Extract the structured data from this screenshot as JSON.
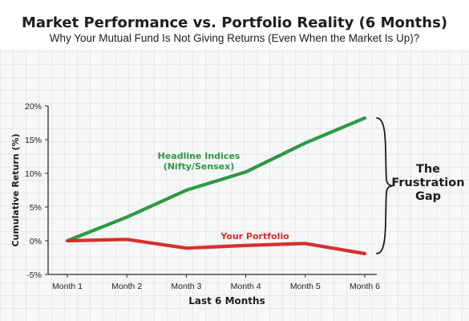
{
  "chart_data": {
    "type": "line",
    "title": "Market Performance vs. Portfolio Reality (6 Months)",
    "subtitle": "Why Your Mutual Fund Is Not Giving Returns (Even When the Market Is Up)?",
    "xlabel": "Last 6 Months",
    "ylabel": "Cumulative Return (%)",
    "categories": [
      "Month 1",
      "Month 2",
      "Month 3",
      "Month 4",
      "Month 5",
      "Month 6"
    ],
    "yticks": [
      "20%",
      "15%",
      "10%",
      "5%",
      "0%",
      "-5%"
    ],
    "ytick_values": [
      20,
      15,
      10,
      5,
      0,
      -5
    ],
    "ylim": [
      -5,
      20
    ],
    "grid": true,
    "series": [
      {
        "name_lines": [
          "Headline Indices",
          "(Nifty/Sensex)"
        ],
        "values": [
          0,
          3.5,
          7.5,
          10.2,
          14.5,
          18.2
        ],
        "color": "#2c9a41"
      },
      {
        "name": "Your Portfolio",
        "values": [
          0,
          0.2,
          -1.1,
          -0.7,
          -0.4,
          -1.9
        ],
        "color": "#d6302b"
      }
    ],
    "annotation": {
      "bracket": "}",
      "label_lines": [
        "The",
        "Frustration",
        "Gap"
      ]
    }
  }
}
